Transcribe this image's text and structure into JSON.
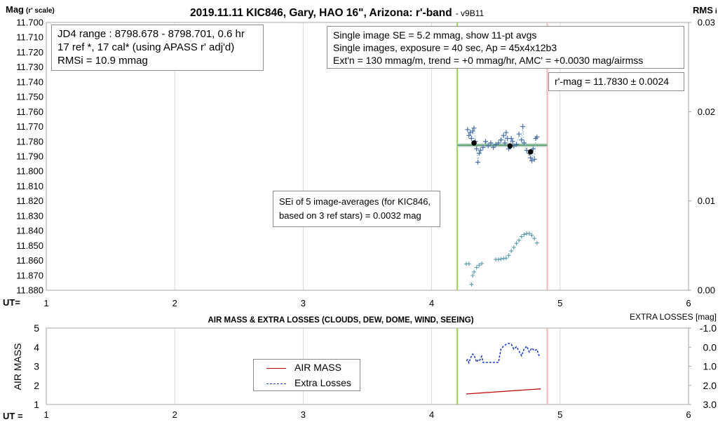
{
  "chart_data": [
    {
      "type": "scatter",
      "title": "2019.11.11 KIC846, Gary, HAO 16\", Arizona: r'-band",
      "subtitle": "- v9B11",
      "xlabel": "UT=",
      "ylabel": "Mag",
      "ylabel_suffix": "(r' scale)",
      "y2label": "RMS",
      "y2label_suffix": "i",
      "xlim": [
        1,
        6
      ],
      "ylim": [
        11.88,
        11.7
      ],
      "y2lim": [
        0.0,
        0.03
      ],
      "x_ticks": [
        "1",
        "2",
        "3",
        "4",
        "5",
        "6"
      ],
      "y_ticks": [
        "11.700",
        "11.710",
        "11.720",
        "11.730",
        "11.740",
        "11.750",
        "11.760",
        "11.770",
        "11.780",
        "11.790",
        "11.800",
        "11.810",
        "11.820",
        "11.830",
        "11.840",
        "11.850",
        "11.860",
        "11.870",
        "11.880"
      ],
      "y2_ticks": [
        "0.03",
        "0.02",
        "0.01",
        "0.00"
      ],
      "grid": "vertical",
      "vertical_lines": [
        {
          "x": 4.2,
          "color": "#92d050"
        },
        {
          "x": 4.9,
          "color": "#f4b6b6"
        }
      ],
      "trend_line": {
        "x": [
          4.2,
          4.9
        ],
        "y": [
          11.7825,
          11.7825
        ],
        "color": "#b7cfbf"
      },
      "trend_line_core": {
        "x": [
          4.2,
          4.9
        ],
        "y": [
          11.7825,
          11.7825
        ],
        "color": "#4e9a64"
      },
      "series": [
        {
          "role": "single images",
          "marker": "plus",
          "color": "#4a6fa5",
          "x": [
            4.28,
            4.29,
            4.3,
            4.31,
            4.32,
            4.33,
            4.34,
            4.35,
            4.36,
            4.37,
            4.38,
            4.4,
            4.42,
            4.44,
            4.46,
            4.48,
            4.5,
            4.52,
            4.54,
            4.56,
            4.57,
            4.58,
            4.59,
            4.6,
            4.61,
            4.62,
            4.63,
            4.64,
            4.66,
            4.68,
            4.7,
            4.71,
            4.72,
            4.74,
            4.76,
            4.77,
            4.78,
            4.79,
            4.8,
            4.81,
            4.82
          ],
          "y": [
            11.772,
            11.776,
            11.774,
            11.778,
            11.773,
            11.771,
            11.78,
            11.785,
            11.794,
            11.788,
            11.786,
            11.784,
            11.78,
            11.783,
            11.781,
            11.784,
            11.782,
            11.781,
            11.779,
            11.776,
            11.781,
            11.774,
            11.778,
            11.785,
            11.783,
            11.778,
            11.78,
            11.783,
            11.782,
            11.775,
            11.779,
            11.77,
            11.781,
            11.786,
            11.788,
            11.791,
            11.793,
            11.785,
            11.792,
            11.778,
            11.777
          ]
        },
        {
          "role": "image averages",
          "marker": "dot",
          "color": "#000000",
          "x": [
            4.33,
            4.61,
            4.77
          ],
          "y": [
            11.781,
            11.783,
            11.787
          ]
        },
        {
          "role": "RMSi",
          "axis": "y2",
          "marker": "plus",
          "color": "#5b9bae",
          "x": [
            4.27,
            4.29,
            4.31,
            4.32,
            4.33,
            4.35,
            4.37,
            4.39,
            4.5,
            4.52,
            4.54,
            4.56,
            4.58,
            4.6,
            4.62,
            4.64,
            4.66,
            4.68,
            4.7,
            4.72,
            4.74,
            4.76,
            4.78,
            4.8,
            4.82
          ],
          "y": [
            0.00295,
            0.00295,
            0.00065,
            0.00165,
            0.00205,
            0.00255,
            0.0028,
            0.003,
            0.00345,
            0.00345,
            0.0035,
            0.00355,
            0.0036,
            0.0039,
            0.0044,
            0.0048,
            0.00525,
            0.0056,
            0.006,
            0.00625,
            0.00635,
            0.00635,
            0.00615,
            0.0058,
            0.0053
          ]
        }
      ],
      "annotations": {
        "jd_range": "JD4 range : 8798.678 - 8798.701,  0.6  hr",
        "ref_cal": "17 ref *, 17 cal* (using APASS r' adj'd)",
        "rmsi": "RMSi = 10.9 mmag",
        "single_se": "Single image SE = 5.2 mmag, show  11-pt avgs",
        "exposure": "Single images, exposure = 40 sec, Ap = 45x4x12b3",
        "extn": "Ext'n = 130 mmag/m, trend =  +0 mmag/hr, AMC' = +0.0030 mag/airmss",
        "rmag": "r'-mag = 11.7830 ± 0.0024",
        "sei_line1": "SEi of 5 image-averages (for KIC846,",
        "sei_line2": "based on 3 ref stars) = 0.0032 mag"
      }
    },
    {
      "type": "line",
      "title": "AIR MASS & EXTRA LOSSES (CLOUDS, DEW, DOME, WIND, SEEING)",
      "xlabel": "UT =",
      "ylabel": "AIR MASS",
      "y2label": "EXTRA LOSSES [mag]",
      "xlim": [
        1,
        6
      ],
      "ylim": [
        1,
        5
      ],
      "y2lim": [
        3.0,
        -1.0
      ],
      "x_ticks": [
        "1",
        "2",
        "3",
        "4",
        "5",
        "6"
      ],
      "y_ticks": [
        "1",
        "2",
        "3",
        "4",
        "5"
      ],
      "y2_ticks": [
        "-1.0",
        "0.0",
        "1.0",
        "2.0",
        "3.0"
      ],
      "grid": "vertical",
      "vertical_lines": [
        {
          "x": 4.2,
          "color": "#92d050"
        },
        {
          "x": 4.9,
          "color": "#f4b6b6"
        }
      ],
      "legend": {
        "position": "center",
        "entries": [
          "AIR MASS",
          "Extra Losses"
        ]
      },
      "series": [
        {
          "name": "AIR MASS",
          "color": "#c00000",
          "style": "solid",
          "x": [
            4.27,
            4.85
          ],
          "y": [
            1.55,
            1.82
          ]
        },
        {
          "name": "Extra Losses",
          "axis": "y2",
          "color": "#1f3fbf",
          "style": "dash",
          "x": [
            4.27,
            4.28,
            4.29,
            4.3,
            4.31,
            4.32,
            4.33,
            4.35,
            4.36,
            4.37,
            4.38,
            4.39,
            4.4,
            4.42,
            4.45,
            4.48,
            4.5,
            4.52,
            4.54,
            4.56,
            4.58,
            4.6,
            4.62,
            4.64,
            4.66,
            4.68,
            4.7,
            4.72,
            4.74,
            4.76,
            4.78,
            4.8,
            4.82,
            4.84
          ],
          "y": [
            0.72,
            0.65,
            0.82,
            0.62,
            0.48,
            0.36,
            0.42,
            0.78,
            0.68,
            0.72,
            0.62,
            0.48,
            0.8,
            0.8,
            0.8,
            0.8,
            0.8,
            0.8,
            0.1,
            -0.05,
            -0.15,
            -0.2,
            -0.15,
            0.1,
            -0.02,
            0.2,
            0.45,
            0.1,
            -0.05,
            0.25,
            0.05,
            0.18,
            0.12,
            0.52
          ]
        }
      ]
    }
  ]
}
